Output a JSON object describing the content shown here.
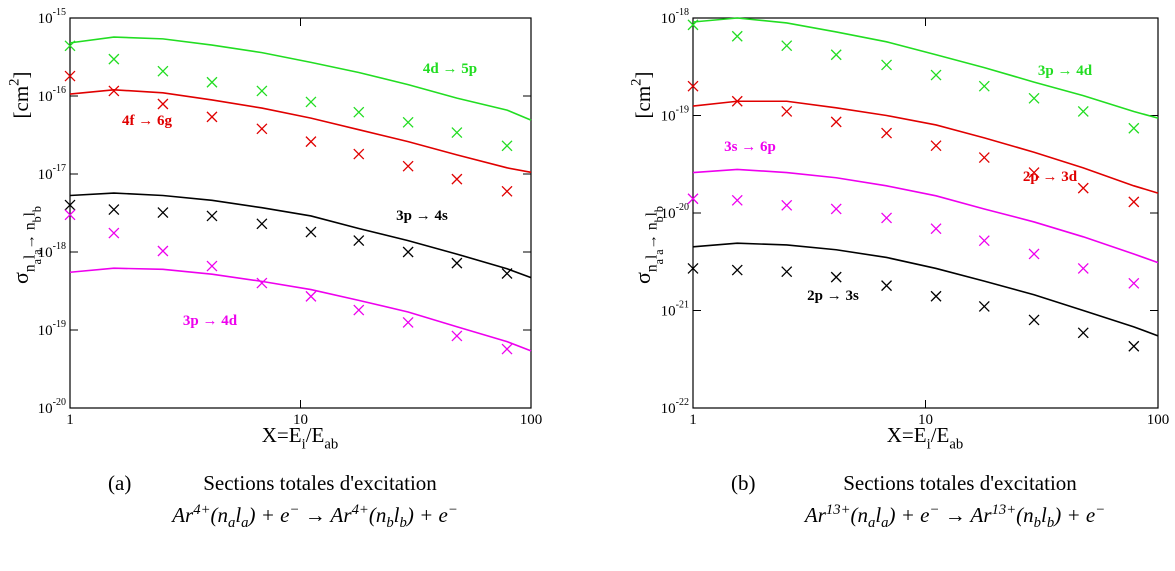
{
  "chart_data": [
    {
      "type": "line",
      "xlog": true,
      "ylog": true,
      "xlabel": [
        [
          "X=E",
          ""
        ],
        [
          "i",
          "sub"
        ],
        [
          "/E",
          ""
        ],
        [
          "ab",
          "sub"
        ]
      ],
      "ylabel": [
        [
          "σ",
          ""
        ],
        [
          "n",
          "sub"
        ],
        [
          "a",
          "subsub"
        ],
        [
          "l",
          "sub"
        ],
        [
          "a",
          "subsub"
        ],
        [
          "→ n",
          "sub"
        ],
        [
          "b",
          "subsub"
        ],
        [
          "l",
          "sub"
        ],
        [
          "b",
          "subsub"
        ]
      ],
      "yunits": [
        [
          "[cm",
          ""
        ],
        [
          "2",
          "sup"
        ],
        [
          "]",
          ""
        ]
      ],
      "xlim": [
        1,
        100
      ],
      "xticks": [
        1,
        10,
        100
      ],
      "ylim": [
        1e-20,
        1e-15
      ],
      "yticks": [
        {
          "value": 1e-15,
          "label": "10",
          "exponent": "-15"
        },
        {
          "value": 1e-16,
          "label": "10",
          "exponent": "-16"
        },
        {
          "value": 1e-17,
          "label": "10",
          "exponent": "-17"
        },
        {
          "value": 1e-18,
          "label": "10",
          "exponent": "-18"
        },
        {
          "value": 1e-19,
          "label": "10",
          "exponent": "-19"
        },
        {
          "value": 1e-20,
          "label": "10",
          "exponent": "-20"
        }
      ],
      "x": [
        1,
        1.55,
        2.53,
        4.13,
        6.8,
        11.1,
        17.9,
        29.3,
        47.7,
        78.7,
        100
      ],
      "series": [
        {
          "name": "4d → 5p",
          "color": "#22dd22",
          "values": [
            4.8e-16,
            5.7e-16,
            5.4e-16,
            4.5e-16,
            3.6e-16,
            2.7e-16,
            2e-16,
            1.4e-16,
            9.4e-17,
            6.6e-17,
            4.9e-17
          ],
          "marker_values": [
            4.4e-16,
            2.97e-16,
            2.08e-16,
            1.5e-16,
            1.16e-16,
            8.4e-17,
            6.2e-17,
            4.6e-17,
            3.4e-17,
            2.3e-17,
            null
          ]
        },
        {
          "name": "4f → 6g",
          "color": "#e00000",
          "values": [
            1.06e-16,
            1.2e-16,
            1.1e-16,
            8.9e-17,
            7e-17,
            5.2e-17,
            3.7e-17,
            2.6e-17,
            1.76e-17,
            1.2e-17,
            1.05e-17
          ],
          "marker_values": [
            1.8e-16,
            1.16e-16,
            7.9e-17,
            5.4e-17,
            3.8e-17,
            2.6e-17,
            1.8e-17,
            1.26e-17,
            8.6e-18,
            6e-18,
            null
          ]
        },
        {
          "name": "3p → 4s",
          "color": "#000000",
          "values": [
            5.3e-18,
            5.7e-18,
            5.3e-18,
            4.6e-18,
            3.7e-18,
            2.9e-18,
            2e-18,
            1.4e-18,
            9.4e-19,
            6.1e-19,
            4.7e-19
          ],
          "marker_values": [
            4e-18,
            3.5e-18,
            3.2e-18,
            2.9e-18,
            2.3e-18,
            1.8e-18,
            1.4e-18,
            1e-18,
            7.2e-19,
            5.3e-19,
            null
          ]
        },
        {
          "name": "3p → 4d",
          "color": "#ee00ee",
          "values": [
            5.5e-19,
            6.2e-19,
            6e-19,
            5.2e-19,
            4.2e-19,
            3.3e-19,
            2.4e-19,
            1.7e-19,
            1.1e-19,
            7.1e-20,
            5.4e-20
          ],
          "marker_values": [
            3e-18,
            1.75e-18,
            1.03e-18,
            6.6e-19,
            4e-19,
            2.7e-19,
            1.8e-19,
            1.25e-19,
            8.4e-20,
            5.7e-20,
            null
          ]
        }
      ]
    },
    {
      "type": "line",
      "xlog": true,
      "ylog": true,
      "xlabel": [
        [
          "X=E",
          ""
        ],
        [
          "i",
          "sub"
        ],
        [
          "/E",
          ""
        ],
        [
          "ab",
          "sub"
        ]
      ],
      "ylabel": [
        [
          "σ",
          ""
        ],
        [
          "n",
          "sub"
        ],
        [
          "a",
          "subsub"
        ],
        [
          "l",
          "sub"
        ],
        [
          "a",
          "subsub"
        ],
        [
          "→ n",
          "sub"
        ],
        [
          "b",
          "subsub"
        ],
        [
          "l",
          "sub"
        ],
        [
          "b",
          "subsub"
        ]
      ],
      "yunits": [
        [
          "[cm",
          ""
        ],
        [
          "2",
          "sup"
        ],
        [
          "]",
          ""
        ]
      ],
      "xlim": [
        1,
        100
      ],
      "xticks": [
        1,
        10,
        100
      ],
      "ylim": [
        1e-22,
        1e-18
      ],
      "yticks": [
        {
          "value": 1e-18,
          "label": "10",
          "exponent": "-18"
        },
        {
          "value": 1e-19,
          "label": "10",
          "exponent": "-19"
        },
        {
          "value": 1e-20,
          "label": "10",
          "exponent": "-20"
        },
        {
          "value": 1e-21,
          "label": "10",
          "exponent": "-21"
        },
        {
          "value": 1e-22,
          "label": "10",
          "exponent": "-22"
        }
      ],
      "x": [
        1,
        1.55,
        2.53,
        4.13,
        6.8,
        11.1,
        17.9,
        29.3,
        47.7,
        78.7,
        100
      ],
      "series": [
        {
          "name": "3p → 4d",
          "color": "#22dd22",
          "values": [
            9.1e-19,
            1e-18,
            8.9e-19,
            7.2e-19,
            5.7e-19,
            4.2e-19,
            3.1e-19,
            2.2e-19,
            1.6e-19,
            1.1e-19,
            9.4e-20
          ],
          "marker_values": [
            8.5e-19,
            6.5e-19,
            5.2e-19,
            4.2e-19,
            3.3e-19,
            2.6e-19,
            2e-19,
            1.5e-19,
            1.1e-19,
            7.4e-20,
            null
          ]
        },
        {
          "name": "2p → 3d",
          "color": "#e00000",
          "values": [
            1.25e-19,
            1.4e-19,
            1.4e-19,
            1.2e-19,
            1e-19,
            8e-20,
            5.9e-20,
            4.2e-20,
            2.9e-20,
            1.9e-20,
            1.6e-20
          ],
          "marker_values": [
            2e-19,
            1.4e-19,
            1.1e-19,
            8.6e-20,
            6.6e-20,
            4.9e-20,
            3.7e-20,
            2.6e-20,
            1.8e-20,
            1.3e-20,
            null
          ]
        },
        {
          "name": "3s → 6p",
          "color": "#ee00ee",
          "values": [
            2.6e-20,
            2.8e-20,
            2.6e-20,
            2.3e-20,
            1.9e-20,
            1.5e-20,
            1.1e-20,
            8.1e-21,
            5.7e-21,
            3.8e-21,
            3.1e-21
          ],
          "marker_values": [
            1.4e-20,
            1.35e-20,
            1.2e-20,
            1.1e-20,
            8.9e-21,
            6.9e-21,
            5.2e-21,
            3.8e-21,
            2.7e-21,
            1.9e-21,
            null
          ]
        },
        {
          "name": "2p → 3s",
          "color": "#000000",
          "values": [
            4.5e-21,
            4.9e-21,
            4.7e-21,
            4.2e-21,
            3.5e-21,
            2.7e-21,
            2e-21,
            1.45e-21,
            1e-21,
            6.8e-22,
            5.5e-22
          ],
          "marker_values": [
            2.7e-21,
            2.6e-21,
            2.5e-21,
            2.2e-21,
            1.8e-21,
            1.4e-21,
            1.1e-21,
            8e-22,
            5.9e-22,
            4.3e-22,
            null
          ]
        }
      ]
    }
  ],
  "captions": [
    {
      "label": "(a)",
      "text": "Sections totales d'excitation",
      "formula": [
        [
          "Ar",
          ""
        ],
        [
          "4+",
          "sup"
        ],
        [
          "(n",
          ""
        ],
        [
          "a",
          "sub"
        ],
        [
          "l",
          ""
        ],
        [
          "a",
          "sub"
        ],
        [
          ") + e",
          ""
        ],
        [
          "−",
          "sup"
        ],
        [
          " → Ar",
          ""
        ],
        [
          "4+",
          "sup"
        ],
        [
          "(n",
          ""
        ],
        [
          "b",
          "sub"
        ],
        [
          "l",
          ""
        ],
        [
          "b",
          "sub"
        ],
        [
          ") + e",
          ""
        ],
        [
          "−",
          "sup"
        ]
      ]
    },
    {
      "label": "(b)",
      "text": "Sections totales d'excitation",
      "formula": [
        [
          "Ar",
          ""
        ],
        [
          "13+",
          "sup"
        ],
        [
          "(n",
          ""
        ],
        [
          "a",
          "sub"
        ],
        [
          "l",
          ""
        ],
        [
          "a",
          "sub"
        ],
        [
          ") + e",
          ""
        ],
        [
          "−",
          "sup"
        ],
        [
          " → Ar",
          ""
        ],
        [
          "13+",
          "sup"
        ],
        [
          "(n",
          ""
        ],
        [
          "b",
          "sub"
        ],
        [
          "l",
          ""
        ],
        [
          "b",
          "sub"
        ],
        [
          ") + e",
          ""
        ],
        [
          "−",
          "sup"
        ]
      ]
    }
  ]
}
